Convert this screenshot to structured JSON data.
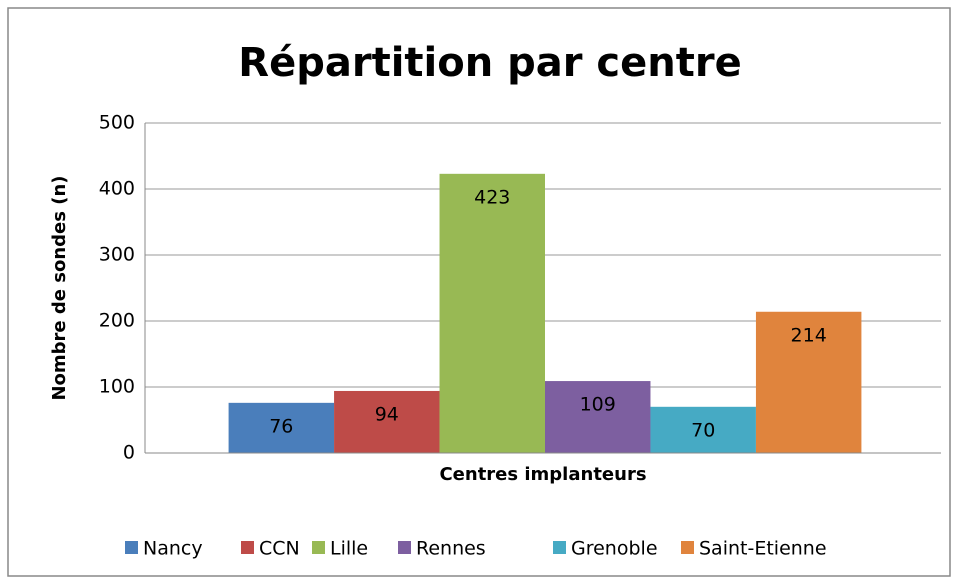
{
  "chart_data": {
    "type": "bar",
    "title": "Répartition par centre",
    "y_label": "Nombre de sondes (n)",
    "categories": [
      "Centres implanteurs"
    ],
    "series": [
      {
        "name": "Nancy",
        "color": "#4a7ebb",
        "values": [
          76
        ]
      },
      {
        "name": "CCN",
        "color": "#be4b48",
        "values": [
          94
        ]
      },
      {
        "name": "Lille",
        "color": "#98b954",
        "values": [
          423
        ]
      },
      {
        "name": "Rennes",
        "color": "#7d5fa0",
        "values": [
          109
        ]
      },
      {
        "name": "Grenoble",
        "color": "#46aac4",
        "values": [
          70
        ]
      },
      {
        "name": "Saint-Etienne",
        "color": "#e0843d",
        "values": [
          214
        ]
      }
    ],
    "ylim": [
      0,
      500
    ],
    "yticks": [
      0,
      100,
      200,
      300,
      400,
      500
    ],
    "grid": true,
    "legend": "bottom"
  }
}
